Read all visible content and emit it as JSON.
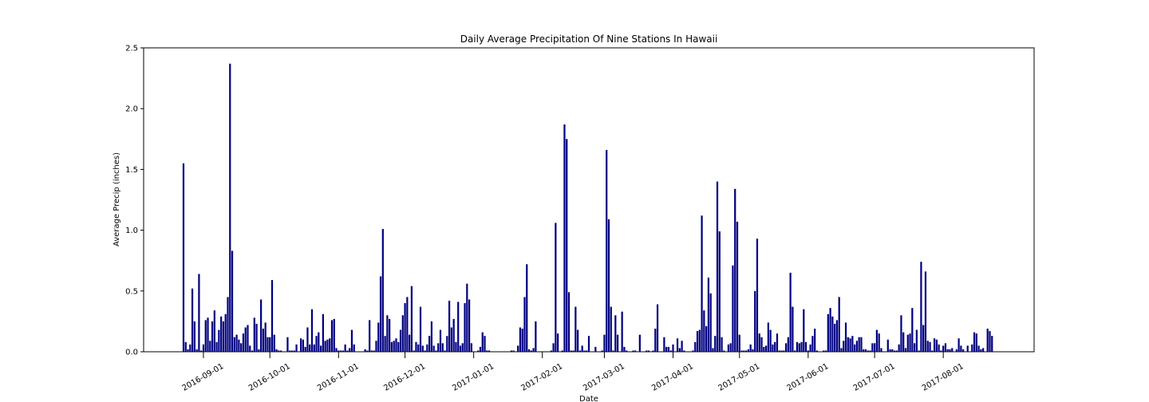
{
  "chart_data": {
    "type": "bar",
    "title": "Daily Average Precipitation Of Nine Stations In Hawaii",
    "x_label": "Date",
    "y_label": "Average Precip (inches)",
    "color": "#000080",
    "grid": false,
    "xlim": [
      "2016-08-05",
      "2017-09-11"
    ],
    "xticks": [
      "2016-09-01",
      "2016-10-01",
      "2016-11-01",
      "2016-12-01",
      "2017-01-01",
      "2017-02-01",
      "2017-03-01",
      "2017-04-01",
      "2017-05-01",
      "2017-06-01",
      "2017-07-01",
      "2017-08-01"
    ],
    "ylim": [
      0,
      2.5
    ],
    "yticks": [
      {
        "value": 0,
        "label": "0.0"
      },
      0.5,
      {
        "value": 1,
        "label": "1.0"
      },
      1.5,
      {
        "value": 2,
        "label": "2.0"
      },
      2.5
    ],
    "x": [
      "2016-08-23",
      "2016-08-24",
      "2016-08-25",
      "2016-08-26",
      "2016-08-27",
      "2016-08-28",
      "2016-08-29",
      "2016-08-30",
      "2016-08-31",
      "2016-09-01",
      "2016-09-02",
      "2016-09-03",
      "2016-09-04",
      "2016-09-05",
      "2016-09-06",
      "2016-09-07",
      "2016-09-08",
      "2016-09-09",
      "2016-09-10",
      "2016-09-11",
      "2016-09-12",
      "2016-09-13",
      "2016-09-14",
      "2016-09-15",
      "2016-09-16",
      "2016-09-17",
      "2016-09-18",
      "2016-09-19",
      "2016-09-20",
      "2016-09-21",
      "2016-09-22",
      "2016-09-23",
      "2016-09-24",
      "2016-09-25",
      "2016-09-26",
      "2016-09-27",
      "2016-09-28",
      "2016-09-29",
      "2016-09-30",
      "2016-10-01",
      "2016-10-02",
      "2016-10-03",
      "2016-10-04",
      "2016-10-05",
      "2016-10-06",
      "2016-10-07",
      "2016-10-08",
      "2016-10-09",
      "2016-10-10",
      "2016-10-11",
      "2016-10-12",
      "2016-10-13",
      "2016-10-14",
      "2016-10-15",
      "2016-10-16",
      "2016-10-17",
      "2016-10-18",
      "2016-10-19",
      "2016-10-20",
      "2016-10-21",
      "2016-10-22",
      "2016-10-23",
      "2016-10-24",
      "2016-10-25",
      "2016-10-26",
      "2016-10-27",
      "2016-10-28",
      "2016-10-29",
      "2016-10-30",
      "2016-10-31",
      "2016-11-01",
      "2016-11-02",
      "2016-11-03",
      "2016-11-04",
      "2016-11-05",
      "2016-11-06",
      "2016-11-07",
      "2016-11-08",
      "2016-11-09",
      "2016-11-10",
      "2016-11-11",
      "2016-11-12",
      "2016-11-13",
      "2016-11-14",
      "2016-11-15",
      "2016-11-16",
      "2016-11-17",
      "2016-11-18",
      "2016-11-19",
      "2016-11-20",
      "2016-11-21",
      "2016-11-22",
      "2016-11-23",
      "2016-11-24",
      "2016-11-25",
      "2016-11-26",
      "2016-11-27",
      "2016-11-28",
      "2016-11-29",
      "2016-11-30",
      "2016-12-01",
      "2016-12-02",
      "2016-12-03",
      "2016-12-04",
      "2016-12-05",
      "2016-12-06",
      "2016-12-07",
      "2016-12-08",
      "2016-12-09",
      "2016-12-10",
      "2016-12-11",
      "2016-12-12",
      "2016-12-13",
      "2016-12-14",
      "2016-12-15",
      "2016-12-16",
      "2016-12-17",
      "2016-12-18",
      "2016-12-19",
      "2016-12-20",
      "2016-12-21",
      "2016-12-22",
      "2016-12-23",
      "2016-12-24",
      "2016-12-25",
      "2016-12-26",
      "2016-12-27",
      "2016-12-28",
      "2016-12-29",
      "2016-12-30",
      "2016-12-31",
      "2017-01-01",
      "2017-01-02",
      "2017-01-03",
      "2017-01-04",
      "2017-01-05",
      "2017-01-06",
      "2017-01-07",
      "2017-01-08",
      "2017-01-09",
      "2017-01-10",
      "2017-01-11",
      "2017-01-12",
      "2017-01-13",
      "2017-01-14",
      "2017-01-15",
      "2017-01-16",
      "2017-01-17",
      "2017-01-18",
      "2017-01-19",
      "2017-01-20",
      "2017-01-21",
      "2017-01-22",
      "2017-01-23",
      "2017-01-24",
      "2017-01-25",
      "2017-01-26",
      "2017-01-27",
      "2017-01-28",
      "2017-01-29",
      "2017-01-30",
      "2017-01-31",
      "2017-02-01",
      "2017-02-02",
      "2017-02-03",
      "2017-02-04",
      "2017-02-05",
      "2017-02-06",
      "2017-02-07",
      "2017-02-08",
      "2017-02-09",
      "2017-02-10",
      "2017-02-11",
      "2017-02-12",
      "2017-02-13",
      "2017-02-14",
      "2017-02-15",
      "2017-02-16",
      "2017-02-17",
      "2017-02-18",
      "2017-02-19",
      "2017-02-20",
      "2017-02-21",
      "2017-02-22",
      "2017-02-23",
      "2017-02-24",
      "2017-02-25",
      "2017-02-26",
      "2017-02-27",
      "2017-02-28",
      "2017-03-01",
      "2017-03-02",
      "2017-03-03",
      "2017-03-04",
      "2017-03-05",
      "2017-03-06",
      "2017-03-07",
      "2017-03-08",
      "2017-03-09",
      "2017-03-10",
      "2017-03-11",
      "2017-03-12",
      "2017-03-13",
      "2017-03-14",
      "2017-03-15",
      "2017-03-16",
      "2017-03-17",
      "2017-03-18",
      "2017-03-19",
      "2017-03-20",
      "2017-03-21",
      "2017-03-22",
      "2017-03-23",
      "2017-03-24",
      "2017-03-25",
      "2017-03-26",
      "2017-03-27",
      "2017-03-28",
      "2017-03-29",
      "2017-03-30",
      "2017-03-31",
      "2017-04-01",
      "2017-04-02",
      "2017-04-03",
      "2017-04-04",
      "2017-04-05",
      "2017-04-06",
      "2017-04-07",
      "2017-04-08",
      "2017-04-09",
      "2017-04-10",
      "2017-04-11",
      "2017-04-12",
      "2017-04-13",
      "2017-04-14",
      "2017-04-15",
      "2017-04-16",
      "2017-04-17",
      "2017-04-18",
      "2017-04-19",
      "2017-04-20",
      "2017-04-21",
      "2017-04-22",
      "2017-04-23",
      "2017-04-24",
      "2017-04-25",
      "2017-04-26",
      "2017-04-27",
      "2017-04-28",
      "2017-04-29",
      "2017-04-30",
      "2017-05-01",
      "2017-05-02",
      "2017-05-03",
      "2017-05-04",
      "2017-05-05",
      "2017-05-06",
      "2017-05-07",
      "2017-05-08",
      "2017-05-09",
      "2017-05-10",
      "2017-05-11",
      "2017-05-12",
      "2017-05-13",
      "2017-05-14",
      "2017-05-15",
      "2017-05-16",
      "2017-05-17",
      "2017-05-18",
      "2017-05-19",
      "2017-05-20",
      "2017-05-21",
      "2017-05-22",
      "2017-05-23",
      "2017-05-24",
      "2017-05-25",
      "2017-05-26",
      "2017-05-27",
      "2017-05-28",
      "2017-05-29",
      "2017-05-30",
      "2017-05-31",
      "2017-06-01",
      "2017-06-02",
      "2017-06-03",
      "2017-06-04",
      "2017-06-05",
      "2017-06-06",
      "2017-06-07",
      "2017-06-08",
      "2017-06-09",
      "2017-06-10",
      "2017-06-11",
      "2017-06-12",
      "2017-06-13",
      "2017-06-14",
      "2017-06-15",
      "2017-06-16",
      "2017-06-17",
      "2017-06-18",
      "2017-06-19",
      "2017-06-20",
      "2017-06-21",
      "2017-06-22",
      "2017-06-23",
      "2017-06-24",
      "2017-06-25",
      "2017-06-26",
      "2017-06-27",
      "2017-06-28",
      "2017-06-29",
      "2017-06-30",
      "2017-07-01",
      "2017-07-02",
      "2017-07-03",
      "2017-07-04",
      "2017-07-05",
      "2017-07-06",
      "2017-07-07",
      "2017-07-08",
      "2017-07-09",
      "2017-07-10",
      "2017-07-11",
      "2017-07-12",
      "2017-07-13",
      "2017-07-14",
      "2017-07-15",
      "2017-07-16",
      "2017-07-17",
      "2017-07-18",
      "2017-07-19",
      "2017-07-20",
      "2017-07-21",
      "2017-07-22",
      "2017-07-23",
      "2017-07-24",
      "2017-07-25",
      "2017-07-26",
      "2017-07-27",
      "2017-07-28",
      "2017-07-29",
      "2017-07-30",
      "2017-07-31",
      "2017-08-01",
      "2017-08-02",
      "2017-08-03",
      "2017-08-04",
      "2017-08-05",
      "2017-08-06",
      "2017-08-07",
      "2017-08-08",
      "2017-08-09",
      "2017-08-10",
      "2017-08-11",
      "2017-08-12",
      "2017-08-13",
      "2017-08-14",
      "2017-08-15",
      "2017-08-16",
      "2017-08-17",
      "2017-08-18",
      "2017-08-19",
      "2017-08-20",
      "2017-08-21",
      "2017-08-22",
      "2017-08-23"
    ],
    "values": [
      1.55,
      0.08,
      0.02,
      0.06,
      0.52,
      0.25,
      0.02,
      0.64,
      0.01,
      0.06,
      0.26,
      0.28,
      0.09,
      0.25,
      0.34,
      0.08,
      0.18,
      0.29,
      0.25,
      0.31,
      0.45,
      2.37,
      0.83,
      0.12,
      0.14,
      0.1,
      0.07,
      0.15,
      0.2,
      0.22,
      0.05,
      0.01,
      0.28,
      0.23,
      0.02,
      0.43,
      0.19,
      0.24,
      0.12,
      0.12,
      0.59,
      0.14,
      0.02,
      0.01,
      0.01,
      0,
      0,
      0.12,
      0.01,
      0.01,
      0.01,
      0.06,
      0,
      0.11,
      0.1,
      0.04,
      0.2,
      0.06,
      0.35,
      0.06,
      0.13,
      0.16,
      0.05,
      0.31,
      0.09,
      0.1,
      0.11,
      0.26,
      0.27,
      0.03,
      0.01,
      0.01,
      0.01,
      0.06,
      0.01,
      0.03,
      0.18,
      0.06,
      0,
      0,
      0,
      0,
      0.02,
      0.01,
      0.26,
      0.01,
      0.01,
      0.09,
      0.24,
      0.62,
      1.01,
      0.13,
      0.3,
      0.27,
      0.08,
      0.09,
      0.11,
      0.08,
      0.18,
      0.3,
      0.4,
      0.45,
      0.14,
      0.54,
      0.01,
      0.08,
      0.06,
      0.37,
      0.05,
      0.01,
      0.06,
      0.13,
      0.25,
      0.05,
      0.01,
      0.07,
      0.18,
      0.07,
      0.01,
      0.13,
      0.42,
      0.2,
      0.27,
      0.08,
      0.41,
      0.05,
      0.07,
      0.4,
      0.56,
      0.43,
      0.07,
      0,
      0,
      0.01,
      0.04,
      0.16,
      0.13,
      0.01,
      0.01,
      0,
      0,
      0,
      0,
      0,
      0,
      0,
      0,
      0,
      0.01,
      0.01,
      0,
      0.05,
      0.2,
      0.19,
      0.45,
      0.72,
      0.02,
      0.01,
      0.03,
      0.25,
      0,
      0,
      0,
      0,
      0,
      0,
      0.01,
      0.07,
      1.06,
      0.15,
      0,
      0.01,
      1.87,
      1.75,
      0.49,
      0.01,
      0.01,
      0.37,
      0.18,
      0.01,
      0.05,
      0.01,
      0.01,
      0.13,
      0,
      0,
      0.04,
      0,
      0,
      0.01,
      0.14,
      1.66,
      1.09,
      0.37,
      0.01,
      0.3,
      0.14,
      0,
      0.33,
      0.04,
      0.01,
      0,
      0,
      0.01,
      0.01,
      0,
      0.14,
      0,
      0,
      0.01,
      0.01,
      0,
      0.01,
      0.19,
      0.39,
      0,
      0,
      0.12,
      0.04,
      0.04,
      0.01,
      0.06,
      0,
      0.11,
      0.03,
      0.09,
      0.01,
      0,
      0,
      0,
      0.01,
      0.08,
      0.17,
      0.18,
      1.12,
      0.34,
      0.21,
      0.61,
      0.48,
      0.03,
      0.13,
      1.4,
      0.99,
      0.12,
      0.01,
      0,
      0.06,
      0.07,
      0.71,
      1.34,
      1.07,
      0.14,
      0.01,
      0.01,
      0.01,
      0.02,
      0.06,
      0.02,
      0.5,
      0.93,
      0.15,
      0.12,
      0.04,
      0.05,
      0.24,
      0.18,
      0.06,
      0.08,
      0.15,
      0.01,
      0.01,
      0.01,
      0.07,
      0.12,
      0.65,
      0.37,
      0.01,
      0.08,
      0.07,
      0.08,
      0.35,
      0.08,
      0.01,
      0.06,
      0.13,
      0.19,
      0.01,
      0,
      0,
      0.01,
      0.01,
      0.31,
      0.36,
      0.29,
      0.23,
      0.26,
      0.45,
      0.03,
      0.09,
      0.24,
      0.12,
      0.11,
      0.13,
      0.06,
      0.09,
      0.12,
      0.12,
      0.02,
      0.02,
      0.01,
      0.01,
      0.07,
      0.07,
      0.18,
      0.15,
      0.03,
      0,
      0,
      0.1,
      0.02,
      0.02,
      0.01,
      0.01,
      0.06,
      0.3,
      0.16,
      0.03,
      0.14,
      0.15,
      0.36,
      0.07,
      0.18,
      0.01,
      0.74,
      0.22,
      0.66,
      0.09,
      0.08,
      0.01,
      0.11,
      0.1,
      0.06,
      0.01,
      0.05,
      0.07,
      0.02,
      0.02,
      0.03,
      0,
      0.02,
      0.11,
      0.05,
      0.02,
      0,
      0.05,
      0,
      0.06,
      0.16,
      0.15,
      0.05,
      0.02,
      0.03,
      0,
      0.19,
      0.17,
      0.13
    ]
  }
}
